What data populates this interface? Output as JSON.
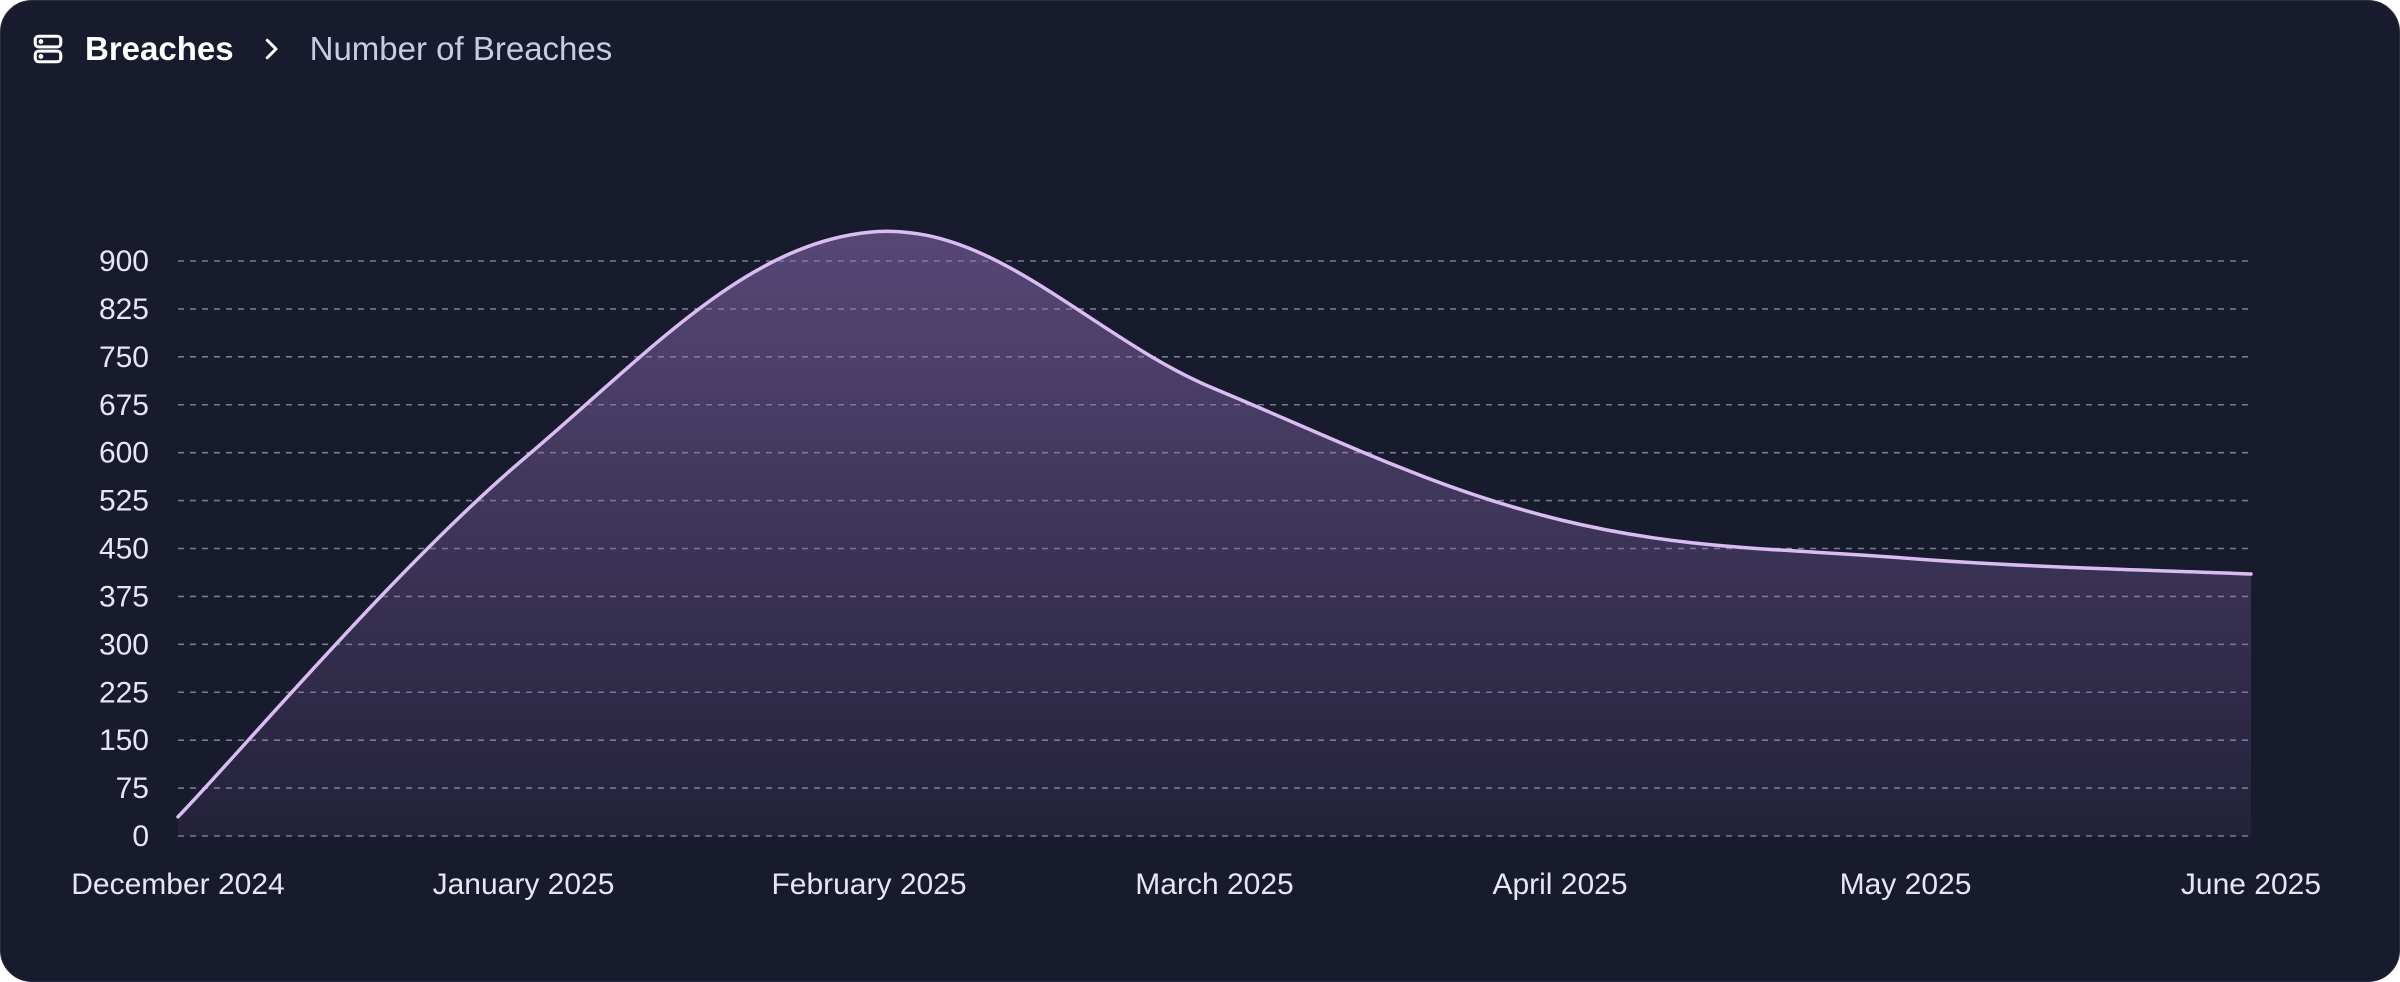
{
  "breadcrumb": {
    "icon": "server-stack-icon",
    "root_label": "Breaches",
    "separator_icon": "chevron-right-icon",
    "current_label": "Number of Breaches"
  },
  "colors": {
    "background": "#181a2d",
    "line": "#d9bdf2",
    "fill": "#8a6bb0",
    "grid": "#9a9cb8",
    "text": "#e6e7f2"
  },
  "chart_data": {
    "type": "area",
    "title": "",
    "xlabel": "",
    "ylabel": "",
    "x": [
      "December 2024",
      "January 2025",
      "February 2025",
      "March 2025",
      "April 2025",
      "May 2025",
      "June 2025"
    ],
    "series": [
      {
        "values": [
          30,
          590,
          945,
          700,
          495,
          435,
          410
        ]
      }
    ],
    "yticks": [
      0,
      75,
      150,
      225,
      300,
      375,
      450,
      525,
      600,
      675,
      750,
      825,
      900
    ],
    "ylim": [
      0,
      900
    ],
    "grid": true,
    "grid_style": "dashed",
    "legend": "none"
  }
}
